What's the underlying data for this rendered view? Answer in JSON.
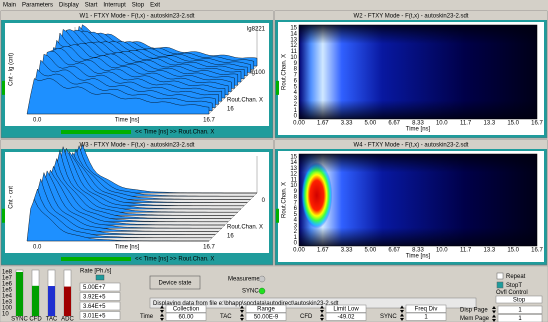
{
  "menu": [
    "Main",
    "Parameters",
    "Display",
    "Start",
    "Interrupt",
    "Stop",
    "Exit"
  ],
  "windows": [
    {
      "kind": "waterfall",
      "scale": "lg",
      "title": "W1 - FTXY Mode - F(t,x) - autoskin23-2.sdt",
      "y_axis": "Cnt - lg (cnt)",
      "y_top": "lg8221",
      "y_mid": "lg100",
      "x_start": "0.0",
      "x_axis": "Time [ns]",
      "x_end": "16.7",
      "z_axis": "Rout.Chan. X",
      "z_end": "16",
      "footer": "<< Time [ns] >> Rout.Chan. X"
    },
    {
      "kind": "heatmap",
      "hot": false,
      "title": "W2 - FTXY Mode - F(t,x) - autoskin23-2.sdt",
      "y_axis": "Rout.Chan. X",
      "x_axis": "Time [ns]",
      "xticks": [
        "0.00",
        "1.67",
        "3.33",
        "5.00",
        "6.67",
        "8.33",
        "10.0",
        "11.7",
        "13.3",
        "15.0",
        "16.7"
      ],
      "yticks": [
        "15",
        "14",
        "13",
        "12",
        "11",
        "10",
        "9",
        "8",
        "7",
        "6",
        "5",
        "4",
        "3",
        "2",
        "1",
        "0"
      ]
    },
    {
      "kind": "waterfall",
      "scale": "lin",
      "title": "W3 - FTXY Mode - F(t,x) - autoskin23-2.sdt",
      "y_axis": "Cnt - cnt",
      "y_mid": "0",
      "x_start": "0.0",
      "x_axis": "Time [ns]",
      "x_end": "16.7",
      "z_axis": "Rout.Chan. X",
      "z_end": "16",
      "footer": "<< Time [ns] >> Rout.Chan. X"
    },
    {
      "kind": "heatmap",
      "hot": true,
      "title": "W4 - FTXY Mode - F(t,x) - autoskin23-2.sdt",
      "y_axis": "Rout.Chan. X",
      "x_axis": "Time [ns]",
      "xticks": [
        "0.00",
        "1.67",
        "3.33",
        "5.00",
        "6.67",
        "8.33",
        "10.0",
        "11.7",
        "13.3",
        "15.0",
        "16.7"
      ],
      "yticks": [
        "15",
        "14",
        "13",
        "12",
        "11",
        "10",
        "9",
        "8",
        "7",
        "6",
        "5",
        "4",
        "3",
        "2",
        "1",
        "0"
      ]
    }
  ],
  "rates": {
    "scale": [
      "1e8",
      "1e7",
      "1e6",
      "1e5",
      "1e4",
      "1e3",
      "100",
      "10"
    ],
    "channels": [
      "SYNC",
      "CFD",
      "TAC",
      "ADC"
    ],
    "colors": [
      "#00a000",
      "#00a000",
      "#2030d0",
      "#a00000"
    ],
    "title": "Rate [Ph./s]",
    "values": [
      "5.00E+7",
      "3.92E+5",
      "3.64E+5",
      "3.01E+5"
    ],
    "value_colors": [
      "#008000",
      "#000000",
      "#0000c0",
      "#c00000"
    ]
  },
  "controls": {
    "device_state": "Device state",
    "measurement": "Measurement",
    "sync": "SYNC",
    "info": "Displaying data from file e:\\bhapp\\spcdata\\autodirect\\autoskin23-2.sdt",
    "repeat": "Repeat",
    "stopt": "StopT",
    "ovfl": "Ovfl Control",
    "ovfl_value": "Stop",
    "params": [
      {
        "label": "Time",
        "name": "Collection",
        "value": "60.00"
      },
      {
        "label": "TAC",
        "name": "Range",
        "value": "50.00E-9"
      },
      {
        "label": "CFD",
        "name": "Limit Low",
        "value": "-49.02"
      },
      {
        "label": "SYNC",
        "name": "Freq Div",
        "value": "1"
      }
    ],
    "pages": [
      {
        "label": "Disp Page",
        "value": "1"
      },
      {
        "label": "Mem Page",
        "value": "1"
      }
    ]
  }
}
